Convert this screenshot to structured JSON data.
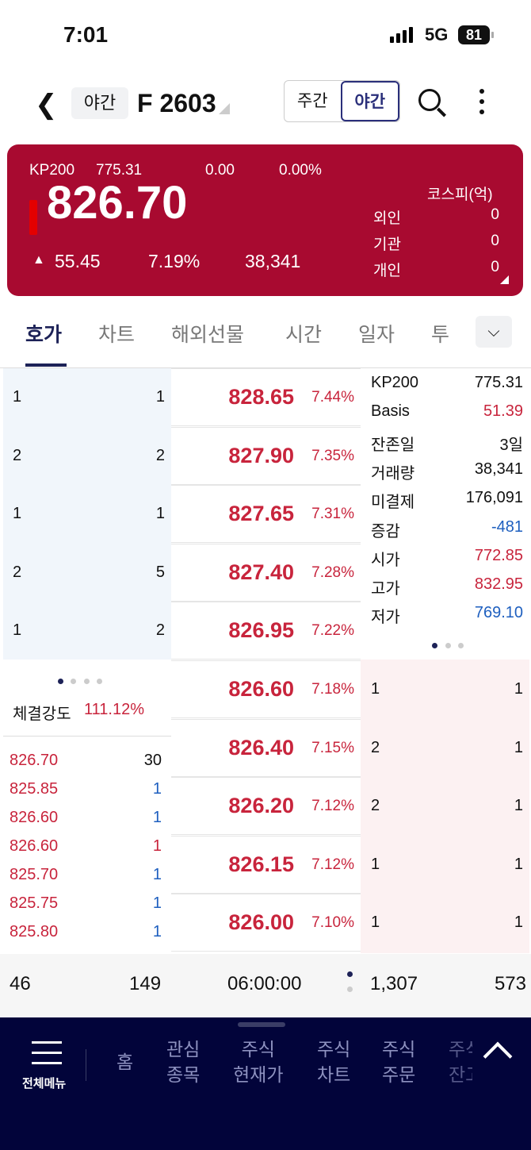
{
  "status": {
    "time": "7:01",
    "network": "5G",
    "battery": "81"
  },
  "header": {
    "session_badge": "야간",
    "code": "F 2603",
    "toggle": [
      "주간",
      "야간"
    ],
    "active_toggle": "야간"
  },
  "quote": {
    "index_name": "KP200",
    "index_value": "775.31",
    "index_change": "0.00",
    "index_rate": "0.00%",
    "price": "826.70",
    "change": "55.45",
    "rate": "7.19%",
    "volume": "38,341",
    "investor_title": "코스피(억)",
    "investors": [
      {
        "label": "외인",
        "value": "0"
      },
      {
        "label": "기관",
        "value": "0"
      },
      {
        "label": "개인",
        "value": "0"
      }
    ],
    "color": "#a80a30"
  },
  "tabs": [
    "호가",
    "차트",
    "해외선물",
    "시간",
    "일자",
    "투"
  ],
  "asks": [
    {
      "left": "1",
      "right": "1",
      "price": "828.65",
      "rate": "7.44%"
    },
    {
      "left": "2",
      "right": "2",
      "price": "827.90",
      "rate": "7.35%"
    },
    {
      "left": "1",
      "right": "1",
      "price": "827.65",
      "rate": "7.31%"
    },
    {
      "left": "2",
      "right": "5",
      "price": "827.40",
      "rate": "7.28%"
    },
    {
      "left": "1",
      "right": "2",
      "price": "826.95",
      "rate": "7.22%"
    }
  ],
  "bids": [
    {
      "left": "1",
      "right": "1",
      "price": "826.60",
      "rate": "7.18%"
    },
    {
      "left": "2",
      "right": "1",
      "price": "826.40",
      "rate": "7.15%"
    },
    {
      "left": "2",
      "right": "1",
      "price": "826.20",
      "rate": "7.12%"
    },
    {
      "left": "1",
      "right": "1",
      "price": "826.15",
      "rate": "7.12%"
    },
    {
      "left": "1",
      "right": "1",
      "price": "826.00",
      "rate": "7.10%"
    }
  ],
  "info": [
    {
      "k": "KP200",
      "v": "775.31",
      "c": ""
    },
    {
      "k": "Basis",
      "v": "51.39",
      "c": "red"
    },
    {
      "k": "잔존일",
      "v": "3일",
      "c": ""
    },
    {
      "k": "거래량",
      "v": "38,341",
      "c": ""
    },
    {
      "k": "미결제",
      "v": "176,091",
      "c": ""
    },
    {
      "k": "증감",
      "v": "-481",
      "c": "blue"
    },
    {
      "k": "시가",
      "v": "772.85",
      "c": "red"
    },
    {
      "k": "고가",
      "v": "832.95",
      "c": "red"
    },
    {
      "k": "저가",
      "v": "769.10",
      "c": "blue"
    }
  ],
  "strength": {
    "label": "체결강도",
    "value": "111.12%"
  },
  "trades": [
    {
      "p": "826.70",
      "q": "30",
      "c": ""
    },
    {
      "p": "825.85",
      "q": "1",
      "c": "blue"
    },
    {
      "p": "826.60",
      "q": "1",
      "c": "blue"
    },
    {
      "p": "826.60",
      "q": "1",
      "c": "red"
    },
    {
      "p": "825.70",
      "q": "1",
      "c": "blue"
    },
    {
      "p": "825.75",
      "q": "1",
      "c": "blue"
    },
    {
      "p": "825.80",
      "q": "1",
      "c": "blue"
    }
  ],
  "footer": {
    "ask_total": "46",
    "ask_count": "149",
    "time": "06:00:00",
    "bid_total": "1,307",
    "bid_count": "573"
  },
  "nav": {
    "menu": "전체메뉴",
    "items": [
      "홈",
      "관심\n종목",
      "주식\n현재가",
      "주식\n차트",
      "주식\n주문",
      "주식\n잔고"
    ]
  }
}
